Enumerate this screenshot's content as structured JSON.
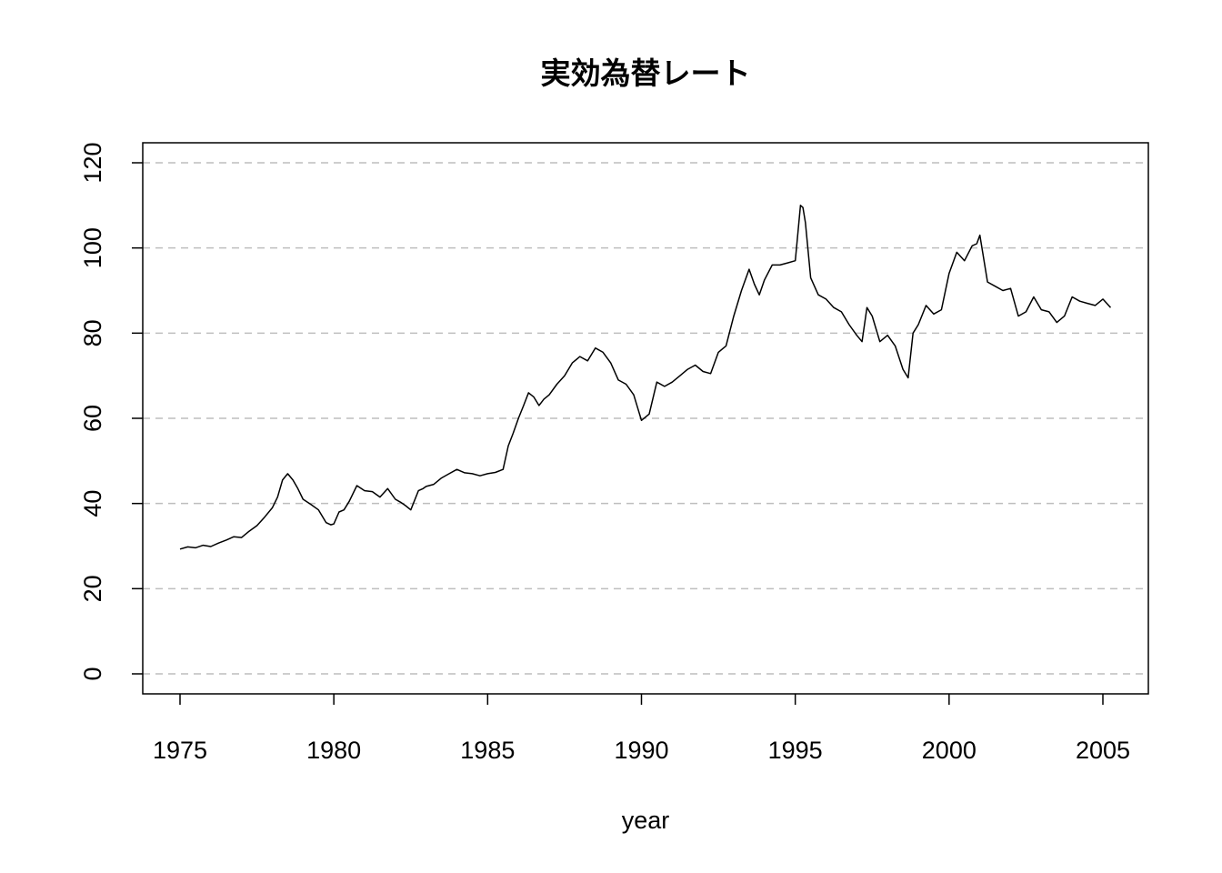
{
  "chart_data": {
    "type": "line",
    "title": "実効為替レート",
    "xlabel": "year",
    "ylabel": "",
    "xlim": [
      1975,
      2005.5
    ],
    "ylim": [
      0,
      120
    ],
    "grid": "horizontal dashed",
    "x_ticks": [
      1975,
      1980,
      1985,
      1990,
      1995,
      2000,
      2005
    ],
    "y_ticks": [
      0,
      20,
      40,
      60,
      80,
      100,
      120
    ],
    "colors": {
      "line": "#000000",
      "grid": "#bebebe",
      "background": "#ffffff"
    },
    "series": [
      {
        "x": [
          1975.0,
          1975.25,
          1975.5,
          1975.75,
          1976.0,
          1976.25,
          1976.5,
          1976.75,
          1977.0,
          1977.25,
          1977.5,
          1977.75,
          1978.0,
          1978.17,
          1978.33,
          1978.5,
          1978.67,
          1978.83,
          1979.0,
          1979.25,
          1979.5,
          1979.75,
          1979.9,
          1980.0,
          1980.17,
          1980.33,
          1980.5,
          1980.75,
          1981.0,
          1981.25,
          1981.5,
          1981.75,
          1982.0,
          1982.17,
          1982.33,
          1982.5,
          1982.75,
          1982.9,
          1983.0,
          1983.25,
          1983.5,
          1983.75,
          1984.0,
          1984.25,
          1984.5,
          1984.75,
          1985.0,
          1985.25,
          1985.5,
          1985.67,
          1985.83,
          1986.0,
          1986.17,
          1986.33,
          1986.5,
          1986.67,
          1986.83,
          1987.0,
          1987.25,
          1987.5,
          1987.75,
          1988.0,
          1988.25,
          1988.5,
          1988.75,
          1988.9,
          1989.0,
          1989.25,
          1989.5,
          1989.75,
          1990.0,
          1990.25,
          1990.5,
          1990.75,
          1991.0,
          1991.25,
          1991.5,
          1991.75,
          1992.0,
          1992.25,
          1992.5,
          1992.75,
          1993.0,
          1993.25,
          1993.5,
          1993.67,
          1993.83,
          1994.0,
          1994.25,
          1994.5,
          1994.75,
          1995.0,
          1995.17,
          1995.25,
          1995.33,
          1995.5,
          1995.75,
          1996.0,
          1996.25,
          1996.5,
          1996.75,
          1997.0,
          1997.17,
          1997.33,
          1997.5,
          1997.75,
          1998.0,
          1998.25,
          1998.5,
          1998.67,
          1998.83,
          1999.0,
          1999.25,
          1999.5,
          1999.75,
          2000.0,
          2000.25,
          2000.5,
          2000.75,
          2000.9,
          2001.0,
          2001.25,
          2001.5,
          2001.75,
          2002.0,
          2002.25,
          2002.5,
          2002.75,
          2003.0,
          2003.25,
          2003.5,
          2003.75,
          2004.0,
          2004.25,
          2004.5,
          2004.75,
          2005.0,
          2005.25
        ],
        "values": [
          29.3,
          29.8,
          29.6,
          30.2,
          29.9,
          30.7,
          31.4,
          32.2,
          32.0,
          33.5,
          34.8,
          36.8,
          39.0,
          41.5,
          45.5,
          47.0,
          45.5,
          43.5,
          41.0,
          39.8,
          38.5,
          35.5,
          35.0,
          35.2,
          38.0,
          38.5,
          40.5,
          44.2,
          43.0,
          42.8,
          41.5,
          43.5,
          41.0,
          40.3,
          39.5,
          38.5,
          43.0,
          43.5,
          44.0,
          44.5,
          46.0,
          47.0,
          48.0,
          47.2,
          47.0,
          46.5,
          47.0,
          47.3,
          48.0,
          53.5,
          56.5,
          60.0,
          63.0,
          66.0,
          65.0,
          63.0,
          64.5,
          65.5,
          68.0,
          70.0,
          73.0,
          74.5,
          73.5,
          76.5,
          75.5,
          74.0,
          73.0,
          69.0,
          68.0,
          65.5,
          59.5,
          61.0,
          68.5,
          67.5,
          68.5,
          70.0,
          71.5,
          72.5,
          71.0,
          70.5,
          75.5,
          77.0,
          84.0,
          90.0,
          95.0,
          91.5,
          89.0,
          92.5,
          96.0,
          96.0,
          96.5,
          97.0,
          110.0,
          109.5,
          106.0,
          93.0,
          89.0,
          88.0,
          86.0,
          85.0,
          82.0,
          79.5,
          78.0,
          86.0,
          84.0,
          78.0,
          79.5,
          77.0,
          71.5,
          69.5,
          80.0,
          82.0,
          86.5,
          84.5,
          85.5,
          94.0,
          99.0,
          97.0,
          100.5,
          101.0,
          103.0,
          92.0,
          91.0,
          90.0,
          90.5,
          84.0,
          85.0,
          88.5,
          85.5,
          85.0,
          82.5,
          84.0,
          88.5,
          87.5,
          87.0,
          86.5,
          88.0,
          86.0
        ]
      }
    ]
  }
}
